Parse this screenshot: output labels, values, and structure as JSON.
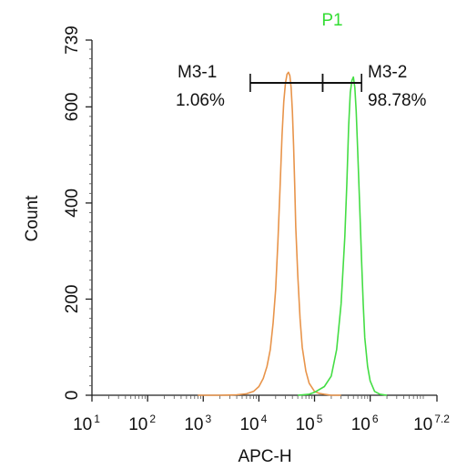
{
  "chart_data": {
    "type": "line",
    "title": "P1",
    "title_color": "#33dd33",
    "xlabel": "APC-H",
    "ylabel": "Count",
    "x_scale": "log",
    "xlim": [
      10,
      15848932
    ],
    "ylim": [
      0,
      739
    ],
    "x_ticks": [
      {
        "base": "10",
        "exp": "1"
      },
      {
        "base": "10",
        "exp": "2"
      },
      {
        "base": "10",
        "exp": "3"
      },
      {
        "base": "10",
        "exp": "4"
      },
      {
        "base": "10",
        "exp": "5"
      },
      {
        "base": "10",
        "exp": "6"
      },
      {
        "base": "10",
        "exp": "7.2"
      }
    ],
    "y_ticks": [
      "0",
      "200",
      "400",
      "600",
      "739"
    ],
    "series": [
      {
        "color": "#e8944a",
        "x": [
          800,
          2000,
          4000,
          6000,
          8000,
          10000,
          12000,
          14000,
          16000,
          18000,
          20000,
          22000,
          24000,
          26000,
          28000,
          30000,
          32000,
          34000,
          36000,
          38000,
          40000,
          42000,
          44000,
          46000,
          50000,
          55000,
          60000,
          70000,
          80000,
          100000,
          120000,
          150000,
          200000,
          300000
        ],
        "y": [
          0,
          0,
          1,
          3,
          8,
          18,
          35,
          60,
          95,
          150,
          220,
          320,
          430,
          540,
          610,
          650,
          668,
          672,
          665,
          640,
          590,
          520,
          440,
          350,
          250,
          160,
          100,
          50,
          25,
          8,
          4,
          2,
          0,
          0
        ]
      },
      {
        "color": "#44dd44",
        "x": [
          50000,
          80000,
          100000,
          150000,
          200000,
          250000,
          300000,
          350000,
          380000,
          410000,
          440000,
          470000,
          500000,
          530000,
          560000,
          600000,
          650000,
          700000,
          750000,
          800000,
          900000,
          1000000,
          1200000,
          1500000,
          2000000
        ],
        "y": [
          0,
          2,
          6,
          18,
          40,
          95,
          190,
          330,
          440,
          560,
          630,
          655,
          662,
          640,
          590,
          500,
          390,
          280,
          190,
          120,
          60,
          30,
          8,
          2,
          0
        ]
      }
    ],
    "markers": [
      {
        "label": "M3-1",
        "percent": "1.06%",
        "x_start": 7000,
        "x_end": 140000,
        "y": 650
      },
      {
        "label": "M3-2",
        "percent": "98.78%",
        "x_start": 140000,
        "x_end": 700000,
        "y": 650
      }
    ]
  }
}
